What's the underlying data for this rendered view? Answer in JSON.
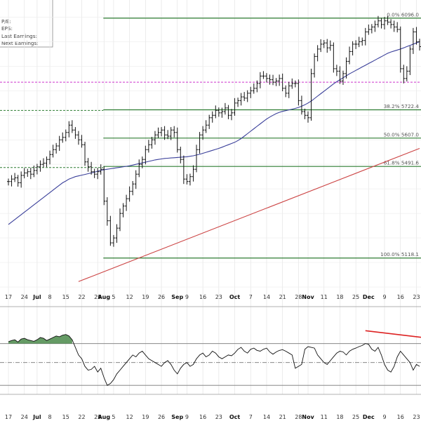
{
  "info_box": {
    "pe_label": "P/E:",
    "eps_label": "EPS:",
    "last_earnings_label": "Last Earnings:",
    "next_earnings_label": "Next Earnings:"
  },
  "chart_data": {
    "type": "ohlc",
    "title": "",
    "ylim": [
      4920,
      6170
    ],
    "x_ticks": [
      {
        "i": 0,
        "label": "17",
        "month": false
      },
      {
        "i": 5,
        "label": "24",
        "month": false
      },
      {
        "i": 9,
        "label": "Jul",
        "month": true
      },
      {
        "i": 13,
        "label": "8",
        "month": false
      },
      {
        "i": 18,
        "label": "15",
        "month": false
      },
      {
        "i": 23,
        "label": "22",
        "month": false
      },
      {
        "i": 28,
        "label": "29",
        "month": false
      },
      {
        "i": 30,
        "label": "Aug",
        "month": true
      },
      {
        "i": 33,
        "label": "5",
        "month": false
      },
      {
        "i": 38,
        "label": "12",
        "month": false
      },
      {
        "i": 43,
        "label": "19",
        "month": false
      },
      {
        "i": 48,
        "label": "26",
        "month": false
      },
      {
        "i": 53,
        "label": "Sep",
        "month": true
      },
      {
        "i": 56,
        "label": "9",
        "month": false
      },
      {
        "i": 61,
        "label": "16",
        "month": false
      },
      {
        "i": 66,
        "label": "23",
        "month": false
      },
      {
        "i": 71,
        "label": "Oct",
        "month": true
      },
      {
        "i": 76,
        "label": "7",
        "month": false
      },
      {
        "i": 81,
        "label": "14",
        "month": false
      },
      {
        "i": 86,
        "label": "21",
        "month": false
      },
      {
        "i": 91,
        "label": "28",
        "month": false
      },
      {
        "i": 94,
        "label": "Nov",
        "month": true
      },
      {
        "i": 99,
        "label": "11",
        "month": false
      },
      {
        "i": 104,
        "label": "18",
        "month": false
      },
      {
        "i": 109,
        "label": "25",
        "month": false
      },
      {
        "i": 113,
        "label": "Dec",
        "month": true
      },
      {
        "i": 118,
        "label": "9",
        "month": false
      },
      {
        "i": 123,
        "label": "16",
        "month": false
      },
      {
        "i": 128,
        "label": "23",
        "month": false
      }
    ],
    "fib_levels": [
      {
        "label": "0.0% 6096.0",
        "value": 6096.0
      },
      {
        "label": "38.2% 5722.4",
        "value": 5722.4
      },
      {
        "label": "50.0% 5607.0",
        "value": 5607.0
      },
      {
        "label": "61.8% 5491.6",
        "value": 5491.6
      },
      {
        "label": "100.0% 5118.1",
        "value": 5118.1
      }
    ],
    "reference_levels": [
      {
        "name": "magenta-dashed",
        "value": 5835,
        "color": "#cc33cc",
        "style": "dashed",
        "full_width": true
      },
      {
        "name": "green-dashed-high",
        "value": 5720,
        "color": "#2e7d32",
        "style": "dashed",
        "full_width": false
      },
      {
        "name": "green-dashed-low",
        "value": 5487,
        "color": "#2e7d32",
        "style": "dashed",
        "full_width": false
      }
    ],
    "close": [
      5430,
      5440,
      5445,
      5425,
      5455,
      5465,
      5470,
      5460,
      5475,
      5490,
      5500,
      5505,
      5520,
      5540,
      5560,
      5575,
      5600,
      5610,
      5630,
      5660,
      5640,
      5620,
      5600,
      5580,
      5510,
      5490,
      5470,
      5460,
      5470,
      5480,
      5350,
      5270,
      5180,
      5200,
      5240,
      5300,
      5330,
      5360,
      5390,
      5420,
      5460,
      5500,
      5520,
      5560,
      5580,
      5600,
      5620,
      5630,
      5640,
      5620,
      5615,
      5640,
      5630,
      5560,
      5520,
      5440,
      5430,
      5450,
      5480,
      5560,
      5620,
      5640,
      5660,
      5690,
      5700,
      5720,
      5710,
      5715,
      5730,
      5700,
      5710,
      5750,
      5760,
      5775,
      5770,
      5790,
      5800,
      5810,
      5830,
      5860,
      5860,
      5850,
      5845,
      5835,
      5840,
      5850,
      5810,
      5790,
      5820,
      5830,
      5830,
      5760,
      5715,
      5700,
      5690,
      5870,
      5940,
      5970,
      5990,
      5995,
      5975,
      5985,
      5890,
      5880,
      5840,
      5870,
      5920,
      5960,
      5990,
      5990,
      6000,
      6005,
      6040,
      6050,
      6060,
      6070,
      6085,
      6070,
      6085,
      6080,
      6070,
      6060,
      6050,
      5890,
      5850,
      5880,
      5970,
      6040,
      6000,
      5980
    ],
    "sma_50": [
      5255,
      5265,
      5275,
      5285,
      5295,
      5305,
      5315,
      5325,
      5335,
      5345,
      5355,
      5365,
      5375,
      5385,
      5395,
      5405,
      5415,
      5425,
      5432,
      5440,
      5445,
      5450,
      5453,
      5456,
      5459,
      5462,
      5465,
      5468,
      5472,
      5476,
      5478,
      5480,
      5482,
      5484,
      5486,
      5488,
      5490,
      5492,
      5494,
      5497,
      5500,
      5503,
      5506,
      5509,
      5512,
      5515,
      5518,
      5520,
      5522,
      5524,
      5525,
      5526,
      5527,
      5528,
      5529,
      5530,
      5531,
      5533,
      5535,
      5538,
      5541,
      5545,
      5549,
      5553,
      5557,
      5561,
      5565,
      5570,
      5575,
      5580,
      5585,
      5590,
      5597,
      5605,
      5615,
      5625,
      5635,
      5645,
      5655,
      5665,
      5675,
      5685,
      5693,
      5700,
      5707,
      5712,
      5716,
      5719,
      5722,
      5725,
      5728,
      5732,
      5737,
      5743,
      5750,
      5758,
      5768,
      5778,
      5788,
      5798,
      5808,
      5818,
      5828,
      5837,
      5845,
      5853,
      5861,
      5869,
      5876,
      5883,
      5890,
      5897,
      5904,
      5911,
      5918,
      5925,
      5932,
      5939,
      5946,
      5953,
      5958,
      5962,
      5966,
      5970,
      5975,
      5980,
      5985,
      5990,
      5995,
      6000
    ],
    "sma_200_range": [
      5022,
      5565
    ],
    "indicator": {
      "name": "oscillator",
      "values": [
        55,
        58,
        60,
        54,
        62,
        64,
        60,
        58,
        56,
        60,
        66,
        64,
        58,
        62,
        66,
        70,
        68,
        72,
        74,
        70,
        60,
        40,
        20,
        10,
        -10,
        -20,
        -18,
        -10,
        -25,
        -15,
        -40,
        -60,
        -55,
        -45,
        -30,
        -20,
        -10,
        0,
        10,
        20,
        15,
        25,
        30,
        20,
        10,
        5,
        0,
        -5,
        -10,
        0,
        5,
        -5,
        -20,
        -30,
        -15,
        -5,
        0,
        -10,
        -5,
        10,
        20,
        25,
        15,
        20,
        30,
        25,
        15,
        10,
        15,
        20,
        18,
        25,
        35,
        40,
        30,
        25,
        35,
        38,
        32,
        30,
        35,
        38,
        28,
        22,
        28,
        32,
        34,
        30,
        25,
        20,
        -15,
        -10,
        -5,
        35,
        42,
        40,
        38,
        20,
        10,
        0,
        -5,
        5,
        15,
        25,
        30,
        28,
        20,
        30,
        35,
        38,
        42,
        45,
        50,
        48,
        35,
        30,
        40,
        20,
        -5,
        -20,
        -25,
        -10,
        15,
        30,
        20,
        10,
        0,
        -20,
        -5,
        -10
      ],
      "ref_line_upper": 50,
      "ref_line_mid": 0,
      "ref_line_lower": -60,
      "trend_line": {
        "from_value": 58,
        "to_value": 50
      }
    }
  }
}
